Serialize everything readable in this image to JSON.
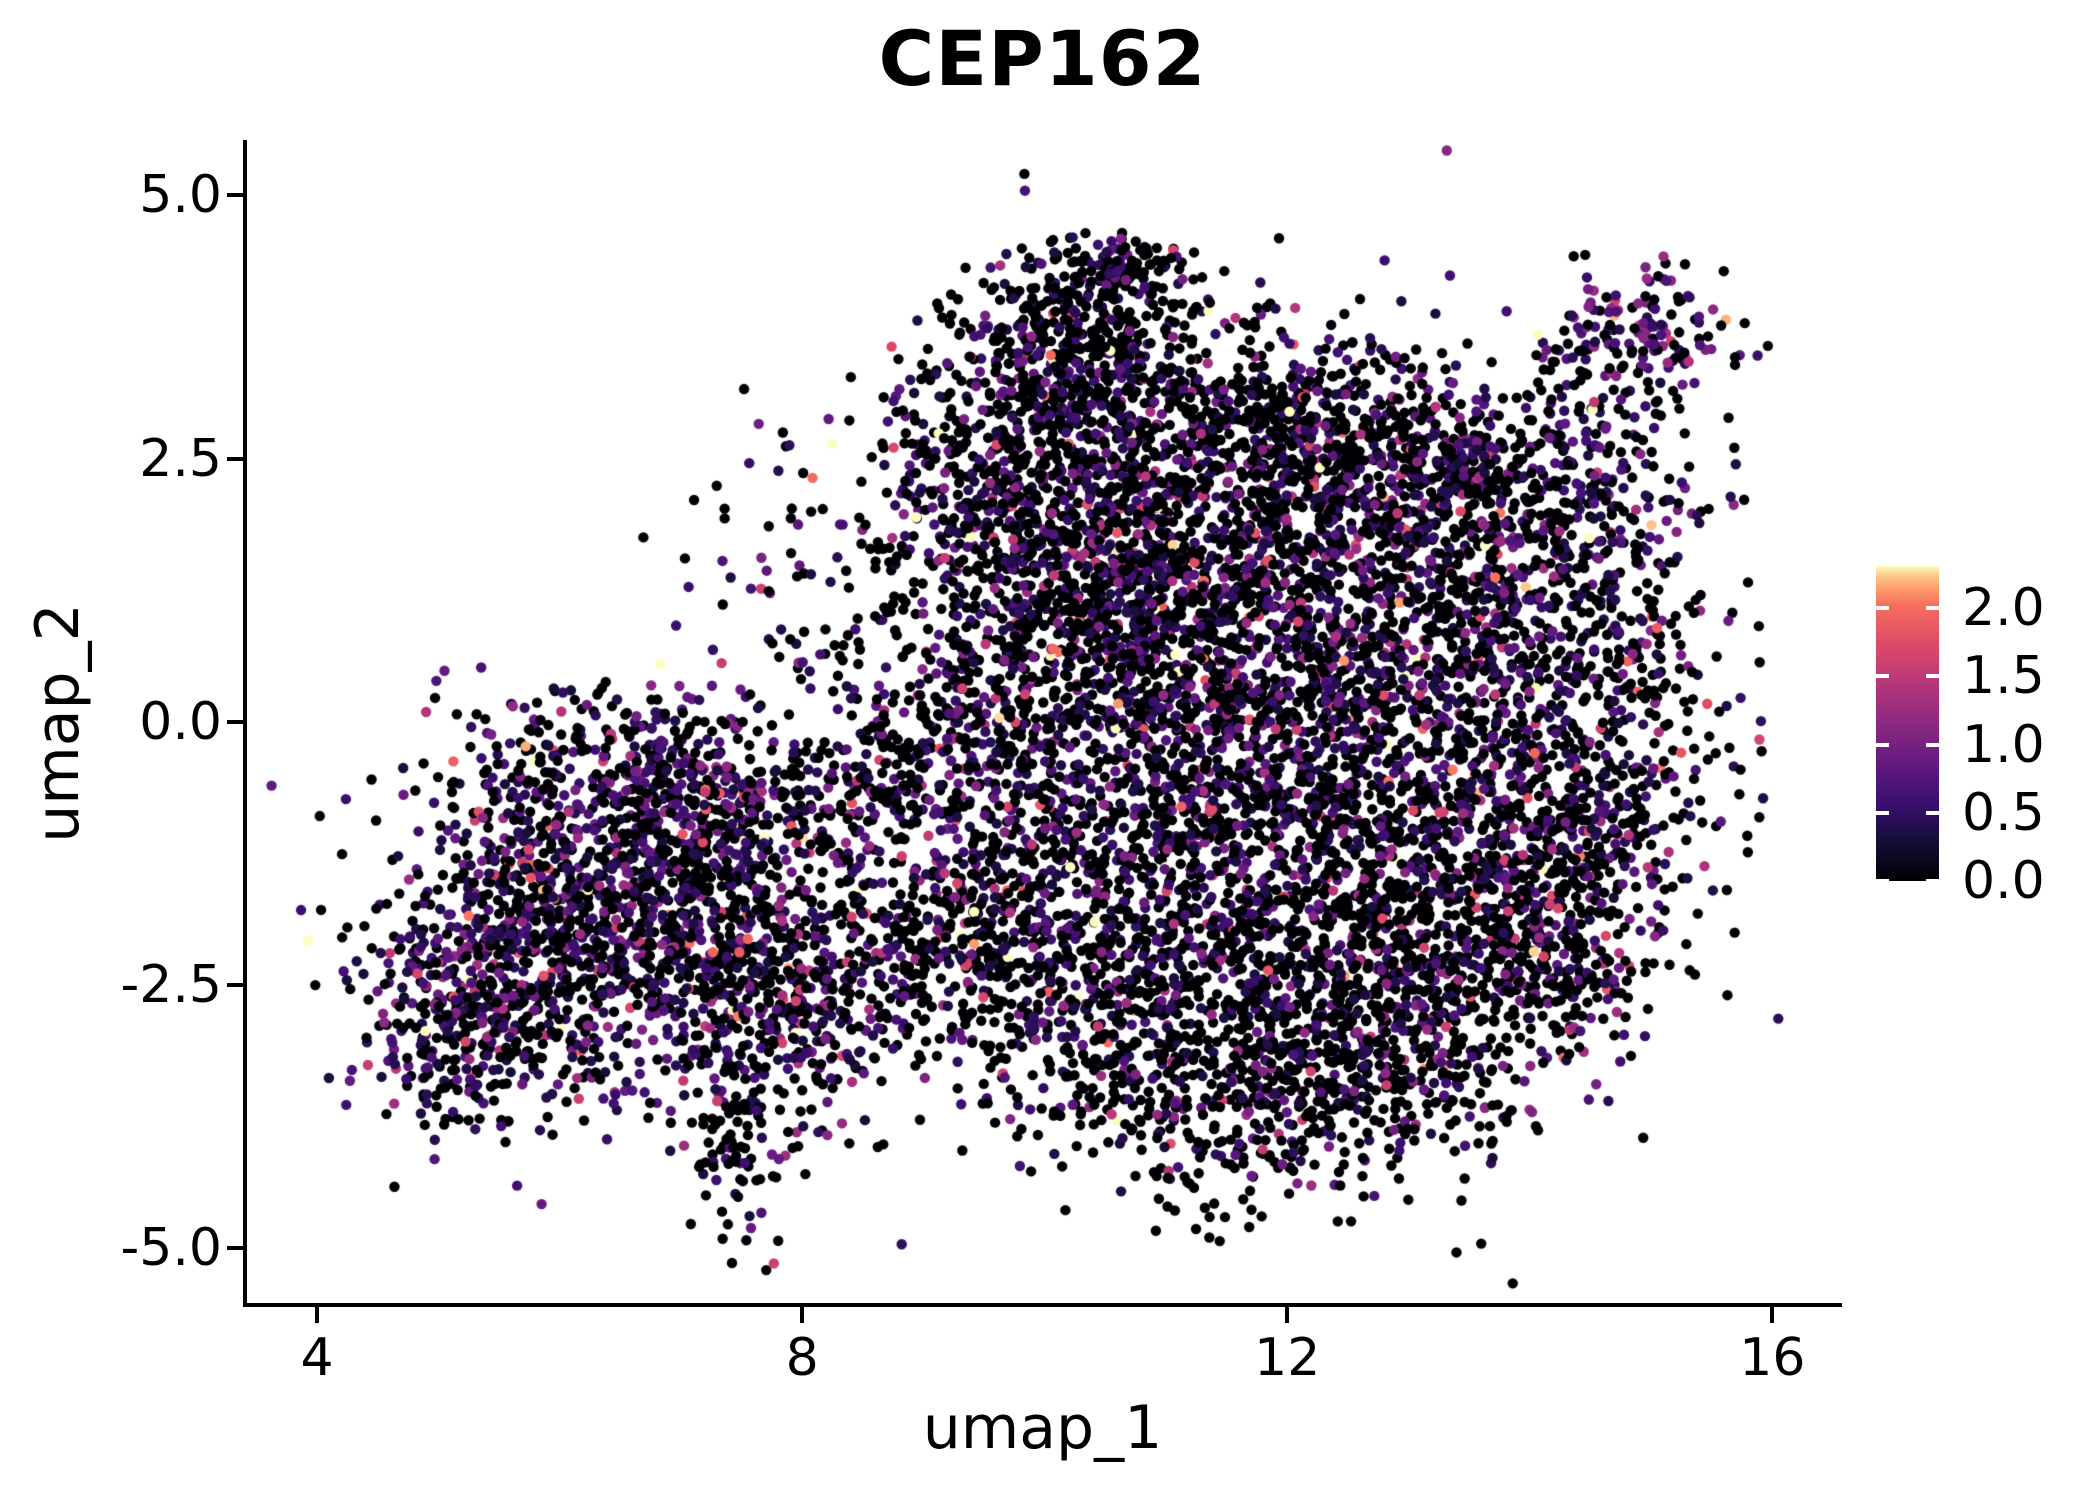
{
  "figure": {
    "background_color": "#ffffff",
    "axis_color": "#000000",
    "text_color": "#000000"
  },
  "chart_data": {
    "type": "scatter",
    "title": "CEP162",
    "xlabel": "umap_1",
    "ylabel": "umap_2",
    "xlim": [
      3.406,
      16.558
    ],
    "ylim": [
      -5.537,
      5.508
    ],
    "grid": false,
    "x_ticks": {
      "values": [
        4,
        8,
        12,
        16
      ],
      "labels": [
        "4",
        "8",
        "12",
        "16"
      ]
    },
    "y_ticks": {
      "values": [
        5.0,
        2.5,
        0.0,
        -2.5,
        -5.0
      ],
      "labels": [
        "5.0",
        "2.5",
        "0.0",
        "-2.5",
        "-5.0"
      ]
    },
    "colorbar": {
      "position": "right",
      "vmin": 0.0,
      "vmax": 2.31,
      "tick_values": [
        2.0,
        1.5,
        1.0,
        0.5,
        0.0
      ],
      "tick_labels": [
        "2.0",
        "1.5",
        "1.0",
        "0.5",
        "0.0"
      ],
      "colormap": "magma",
      "stops": [
        [
          0.0,
          "#000004"
        ],
        [
          0.125,
          "#140e36"
        ],
        [
          0.25,
          "#3b0f70"
        ],
        [
          0.375,
          "#641a80"
        ],
        [
          0.5,
          "#8c2981"
        ],
        [
          0.625,
          "#b5367a"
        ],
        [
          0.75,
          "#de4968"
        ],
        [
          0.875,
          "#f66e5c"
        ],
        [
          0.93,
          "#fe9f6d"
        ],
        [
          0.97,
          "#fdc98d"
        ],
        [
          1.0,
          "#fcfdbf"
        ]
      ]
    },
    "points": {
      "seed": 7,
      "radius_px": 5.2,
      "zero_value_color": "#000004",
      "expr_base": 0.3,
      "expr_mean": 0.45,
      "clusters": [
        {
          "cx": 5.6,
          "cy": -2.5,
          "sx": 0.55,
          "sy": 0.65,
          "n": 460,
          "p": 0.52
        },
        {
          "cx": 6.3,
          "cy": -1.5,
          "sx": 0.65,
          "sy": 0.6,
          "n": 500,
          "p": 0.52
        },
        {
          "cx": 7.3,
          "cy": -2.2,
          "sx": 0.6,
          "sy": 0.65,
          "n": 460,
          "p": 0.48
        },
        {
          "cx": 7.4,
          "cy": -0.9,
          "sx": 0.55,
          "sy": 0.5,
          "n": 320,
          "p": 0.5
        },
        {
          "cx": 6.4,
          "cy": -0.3,
          "sx": 0.7,
          "sy": 0.38,
          "n": 200,
          "p": 0.5
        },
        {
          "cx": 5.0,
          "cy": -2.9,
          "sx": 0.32,
          "sy": 0.5,
          "n": 120,
          "p": 0.5
        },
        {
          "cx": 8.1,
          "cy": -2.9,
          "sx": 0.45,
          "sy": 0.5,
          "n": 190,
          "p": 0.45
        },
        {
          "cx": 7.45,
          "cy": -3.9,
          "sx": 0.22,
          "sy": 0.45,
          "n": 100,
          "p": 0.35
        },
        {
          "cx": 4.82,
          "cy": -2.3,
          "sx": 0.1,
          "sy": 0.16,
          "n": 12,
          "p": 0.75
        },
        {
          "cx": 6.6,
          "cy": -1.8,
          "sx": 1.2,
          "sy": 0.95,
          "n": 180,
          "p": 0.5
        },
        {
          "cx": 10.35,
          "cy": 3.9,
          "sx": 0.45,
          "sy": 0.33,
          "n": 240,
          "p": 0.3
        },
        {
          "cx": 10.05,
          "cy": 3.15,
          "sx": 0.55,
          "sy": 0.45,
          "n": 280,
          "p": 0.32
        },
        {
          "cx": 9.55,
          "cy": 2.35,
          "sx": 0.45,
          "sy": 0.5,
          "n": 210,
          "p": 0.35
        },
        {
          "cx": 10.6,
          "cy": 4.3,
          "sx": 0.33,
          "sy": 0.16,
          "n": 80,
          "p": 0.28
        },
        {
          "cx": 14.9,
          "cy": 3.65,
          "sx": 0.42,
          "sy": 0.33,
          "n": 165,
          "p": 0.62,
          "base": 0.4,
          "mean": 0.55
        },
        {
          "cx": 14.75,
          "cy": 2.95,
          "sx": 0.3,
          "sy": 0.28,
          "n": 22,
          "p": 0.35
        },
        {
          "cx": 10.8,
          "cy": 1.9,
          "sx": 0.7,
          "sy": 0.8,
          "n": 520,
          "p": 0.42
        },
        {
          "cx": 12.3,
          "cy": 1.9,
          "sx": 0.8,
          "sy": 0.7,
          "n": 560,
          "p": 0.45
        },
        {
          "cx": 13.6,
          "cy": 1.2,
          "sx": 0.8,
          "sy": 0.8,
          "n": 520,
          "p": 0.45
        },
        {
          "cx": 11.5,
          "cy": 0.6,
          "sx": 0.8,
          "sy": 0.7,
          "n": 480,
          "p": 0.42
        },
        {
          "cx": 12.8,
          "cy": -0.3,
          "sx": 0.9,
          "sy": 0.8,
          "n": 560,
          "p": 0.42
        },
        {
          "cx": 11.0,
          "cy": -0.7,
          "sx": 0.8,
          "sy": 0.8,
          "n": 480,
          "p": 0.38
        },
        {
          "cx": 12.0,
          "cy": -2.2,
          "sx": 1.0,
          "sy": 0.8,
          "n": 800,
          "p": 0.32
        },
        {
          "cx": 13.6,
          "cy": -2.0,
          "sx": 0.7,
          "sy": 0.8,
          "n": 480,
          "p": 0.38
        },
        {
          "cx": 10.3,
          "cy": -2.6,
          "sx": 0.6,
          "sy": 0.7,
          "n": 340,
          "p": 0.35
        },
        {
          "cx": 11.6,
          "cy": -3.6,
          "sx": 0.7,
          "sy": 0.5,
          "n": 300,
          "p": 0.25
        },
        {
          "cx": 9.7,
          "cy": -1.2,
          "sx": 0.6,
          "sy": 0.8,
          "n": 310,
          "p": 0.38
        },
        {
          "cx": 9.0,
          "cy": -2.2,
          "sx": 0.5,
          "sy": 0.6,
          "n": 220,
          "p": 0.4
        },
        {
          "cx": 14.7,
          "cy": 0.2,
          "sx": 0.45,
          "sy": 1.0,
          "n": 250,
          "p": 0.45
        },
        {
          "cx": 14.2,
          "cy": 2.2,
          "sx": 0.5,
          "sy": 0.5,
          "n": 200,
          "p": 0.45
        },
        {
          "cx": 10.4,
          "cy": 0.9,
          "sx": 0.5,
          "sy": 0.6,
          "n": 260,
          "p": 0.4
        },
        {
          "cx": 9.3,
          "cy": 0.3,
          "sx": 0.5,
          "sy": 0.7,
          "n": 220,
          "p": 0.38
        },
        {
          "cx": 10.0,
          "cy": 1.7,
          "sx": 0.5,
          "sy": 0.6,
          "n": 220,
          "p": 0.4
        },
        {
          "cx": 12.8,
          "cy": -3.3,
          "sx": 0.6,
          "sy": 0.45,
          "n": 250,
          "p": 0.28
        },
        {
          "cx": 14.35,
          "cy": -1.2,
          "sx": 0.5,
          "sy": 0.6,
          "n": 220,
          "p": 0.4
        },
        {
          "cx": 14.3,
          "cy": -2.4,
          "sx": 0.35,
          "sy": 0.35,
          "n": 90,
          "p": 0.35
        },
        {
          "cx": 8.65,
          "cy": -0.6,
          "sx": 0.4,
          "sy": 0.5,
          "n": 130,
          "p": 0.42
        },
        {
          "cx": 11.3,
          "cy": 2.9,
          "sx": 0.6,
          "sy": 0.45,
          "n": 250,
          "p": 0.35
        },
        {
          "cx": 12.4,
          "cy": 3.0,
          "sx": 0.5,
          "sy": 0.4,
          "n": 180,
          "p": 0.4
        },
        {
          "cx": 13.3,
          "cy": 2.4,
          "sx": 0.45,
          "sy": 0.4,
          "n": 180,
          "p": 0.45
        },
        {
          "cx": 8.3,
          "cy": 1.2,
          "sx": 0.7,
          "sy": 0.7,
          "n": 110,
          "p": 0.4
        },
        {
          "cx": 11.8,
          "cy": 0.2,
          "sx": 2.0,
          "sy": 1.8,
          "n": 260,
          "p": 0.38
        },
        {
          "cx": 12.3,
          "cy": -1.2,
          "sx": 1.3,
          "sy": 1.0,
          "n": 300,
          "p": 0.35
        }
      ]
    }
  }
}
